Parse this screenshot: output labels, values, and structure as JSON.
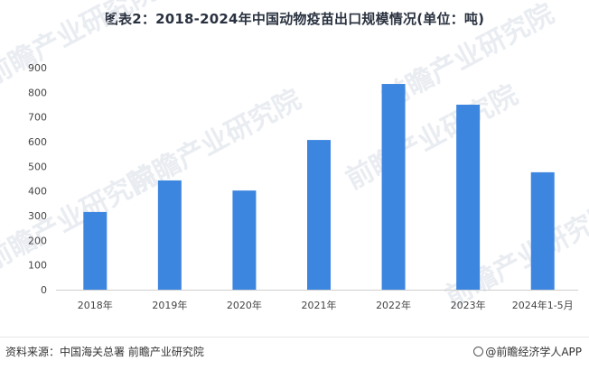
{
  "title": "图表2：2018-2024年中国动物疫苗出口规模情况(单位：吨)",
  "chart_data": {
    "type": "bar",
    "categories": [
      "2018年",
      "2019年",
      "2020年",
      "2021年",
      "2022年",
      "2023年",
      "2024年1-5月"
    ],
    "values": [
      315,
      443,
      402,
      607,
      834,
      750,
      476
    ],
    "ylim": [
      0,
      900
    ],
    "yticks": [
      0,
      100,
      200,
      300,
      400,
      500,
      600,
      700,
      800,
      900
    ],
    "bar_color": "#3d86e0",
    "grid": false,
    "legend": "none"
  },
  "footer": {
    "source": "资料来源：中国海关总署 前瞻产业研究院",
    "brand": "@前瞻经济学人APP",
    "brand_icon": "qianzhan-logo-icon"
  },
  "watermark": {
    "text": "前瞻产业研究院",
    "color": "#e9ecf1"
  }
}
